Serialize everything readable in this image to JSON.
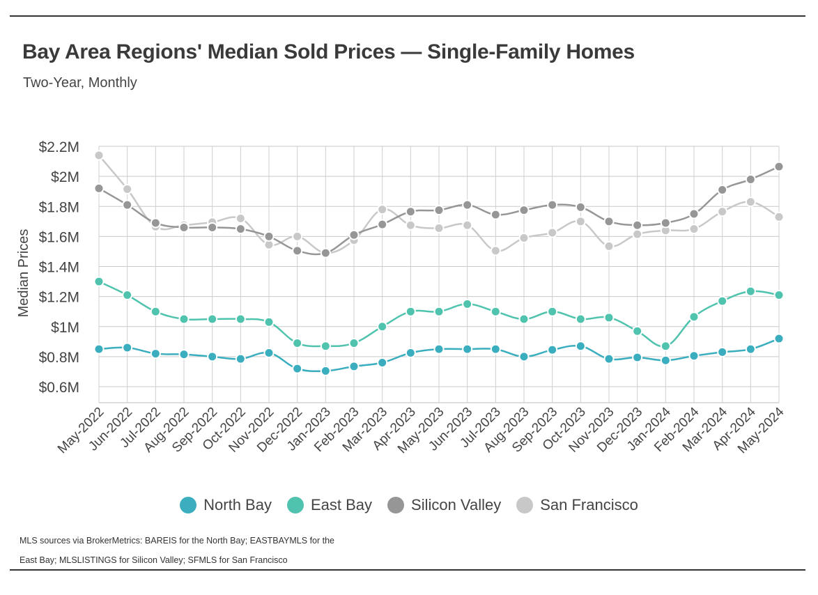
{
  "chart_data": {
    "type": "line",
    "title": "Bay Area Regions' Median Sold Prices — Single-Family Homes",
    "subtitle": "Two-Year, Monthly",
    "ylabel": "Median Prices",
    "xlabel": "",
    "ylim": [
      0.55,
      2.2
    ],
    "yticks": [
      0.6,
      0.8,
      1.0,
      1.2,
      1.4,
      1.6,
      1.8,
      2.0,
      2.2
    ],
    "ytick_labels": [
      "$0.6M",
      "$0.8M",
      "$1M",
      "$1.2M",
      "$1.4M",
      "$1.6M",
      "$1.8M",
      "$2M",
      "$2.2M"
    ],
    "grid": true,
    "legend_position": "bottom",
    "categories": [
      "May-2022",
      "Jun-2022",
      "Jul-2022",
      "Aug-2022",
      "Sep-2022",
      "Oct-2022",
      "Nov-2022",
      "Dec-2022",
      "Jan-2023",
      "Feb-2023",
      "Mar-2023",
      "Apr-2023",
      "May-2023",
      "Jun-2023",
      "Jul-2023",
      "Aug-2023",
      "Sep-2023",
      "Oct-2023",
      "Nov-2023",
      "Dec-2023",
      "Jan-2024",
      "Feb-2024",
      "Mar-2024",
      "Apr-2024",
      "May-2024"
    ],
    "series": [
      {
        "name": "North Bay",
        "color": "#3aaebf",
        "values": [
          0.85,
          0.86,
          0.82,
          0.815,
          0.8,
          0.785,
          0.825,
          0.72,
          0.705,
          0.735,
          0.76,
          0.825,
          0.85,
          0.85,
          0.85,
          0.8,
          0.845,
          0.87,
          0.785,
          0.795,
          0.775,
          0.805,
          0.83,
          0.85,
          0.92
        ]
      },
      {
        "name": "East Bay",
        "color": "#4fc3ad",
        "values": [
          1.3,
          1.21,
          1.1,
          1.05,
          1.05,
          1.05,
          1.03,
          0.89,
          0.87,
          0.89,
          1.0,
          1.1,
          1.1,
          1.15,
          1.1,
          1.05,
          1.1,
          1.05,
          1.06,
          0.97,
          0.87,
          1.065,
          1.17,
          1.235,
          1.21
        ]
      },
      {
        "name": "Silicon Valley",
        "color": "#969696",
        "values": [
          1.92,
          1.81,
          1.69,
          1.66,
          1.66,
          1.65,
          1.6,
          1.505,
          1.49,
          1.61,
          1.68,
          1.765,
          1.775,
          1.81,
          1.745,
          1.775,
          1.81,
          1.795,
          1.7,
          1.675,
          1.69,
          1.75,
          1.91,
          1.98,
          2.065
        ]
      },
      {
        "name": "San Francisco",
        "color": "#c8c8c8",
        "values": [
          2.14,
          1.915,
          1.665,
          1.675,
          1.695,
          1.72,
          1.545,
          1.6,
          1.49,
          1.575,
          1.78,
          1.675,
          1.655,
          1.675,
          1.505,
          1.59,
          1.625,
          1.7,
          1.535,
          1.615,
          1.64,
          1.65,
          1.765,
          1.83,
          1.73
        ]
      }
    ],
    "source_note": "MLS sources via BrokerMetrics: BAREIS for the North Bay; EASTBAYMLS for the East Bay; MLSLISTINGS for Silicon Valley; SFMLS for San Francisco"
  }
}
